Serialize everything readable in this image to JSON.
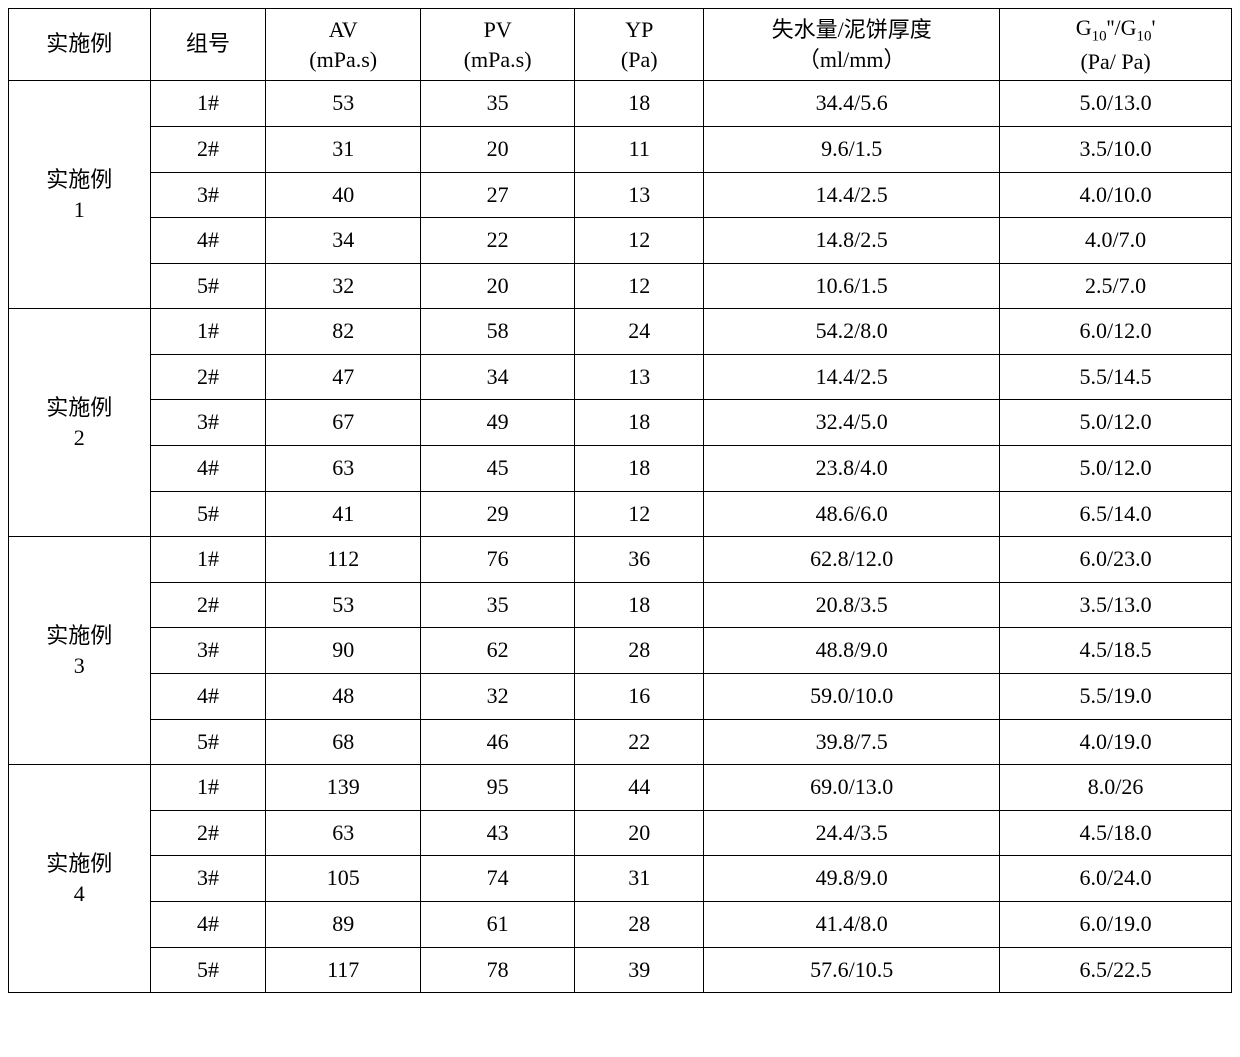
{
  "headers": {
    "example": "实施例",
    "group": "组号",
    "av_label": "AV",
    "av_unit": "(mPa.s)",
    "pv_label": "PV",
    "pv_unit": "(mPa.s)",
    "yp_label": "YP",
    "yp_unit": "(Pa)",
    "water_label": "失水量/泥饼厚度",
    "water_unit": "（ml/mm）",
    "g_label_pre": "G",
    "g_sub1": "10",
    "g_label_mid1": "''/G",
    "g_sub2": "10",
    "g_label_mid2": "'",
    "g_unit": "(Pa/ Pa)"
  },
  "examples": [
    {
      "label": "实施例\n1",
      "rows": [
        {
          "group": "1#",
          "av": "53",
          "pv": "35",
          "yp": "18",
          "water": "34.4/5.6",
          "g": "5.0/13.0"
        },
        {
          "group": "2#",
          "av": "31",
          "pv": "20",
          "yp": "11",
          "water": "9.6/1.5",
          "g": "3.5/10.0"
        },
        {
          "group": "3#",
          "av": "40",
          "pv": "27",
          "yp": "13",
          "water": "14.4/2.5",
          "g": "4.0/10.0"
        },
        {
          "group": "4#",
          "av": "34",
          "pv": "22",
          "yp": "12",
          "water": "14.8/2.5",
          "g": "4.0/7.0"
        },
        {
          "group": "5#",
          "av": "32",
          "pv": "20",
          "yp": "12",
          "water": "10.6/1.5",
          "g": "2.5/7.0"
        }
      ]
    },
    {
      "label": "实施例\n2",
      "rows": [
        {
          "group": "1#",
          "av": "82",
          "pv": "58",
          "yp": "24",
          "water": "54.2/8.0",
          "g": "6.0/12.0"
        },
        {
          "group": "2#",
          "av": "47",
          "pv": "34",
          "yp": "13",
          "water": "14.4/2.5",
          "g": "5.5/14.5"
        },
        {
          "group": "3#",
          "av": "67",
          "pv": "49",
          "yp": "18",
          "water": "32.4/5.0",
          "g": "5.0/12.0"
        },
        {
          "group": "4#",
          "av": "63",
          "pv": "45",
          "yp": "18",
          "water": "23.8/4.0",
          "g": "5.0/12.0"
        },
        {
          "group": "5#",
          "av": "41",
          "pv": "29",
          "yp": "12",
          "water": "48.6/6.0",
          "g": "6.5/14.0"
        }
      ]
    },
    {
      "label": "实施例\n3",
      "rows": [
        {
          "group": "1#",
          "av": "112",
          "pv": "76",
          "yp": "36",
          "water": "62.8/12.0",
          "g": "6.0/23.0"
        },
        {
          "group": "2#",
          "av": "53",
          "pv": "35",
          "yp": "18",
          "water": "20.8/3.5",
          "g": "3.5/13.0"
        },
        {
          "group": "3#",
          "av": "90",
          "pv": "62",
          "yp": "28",
          "water": "48.8/9.0",
          "g": "4.5/18.5"
        },
        {
          "group": "4#",
          "av": "48",
          "pv": "32",
          "yp": "16",
          "water": "59.0/10.0",
          "g": "5.5/19.0"
        },
        {
          "group": "5#",
          "av": "68",
          "pv": "46",
          "yp": "22",
          "water": "39.8/7.5",
          "g": "4.0/19.0"
        }
      ]
    },
    {
      "label": "实施例\n4",
      "rows": [
        {
          "group": "1#",
          "av": "139",
          "pv": "95",
          "yp": "44",
          "water": "69.0/13.0",
          "g": "8.0/26"
        },
        {
          "group": "2#",
          "av": "63",
          "pv": "43",
          "yp": "20",
          "water": "24.4/3.5",
          "g": "4.5/18.0"
        },
        {
          "group": "3#",
          "av": "105",
          "pv": "74",
          "yp": "31",
          "water": "49.8/9.0",
          "g": "6.0/24.0"
        },
        {
          "group": "4#",
          "av": "89",
          "pv": "61",
          "yp": "28",
          "water": "41.4/8.0",
          "g": "6.0/19.0"
        },
        {
          "group": "5#",
          "av": "117",
          "pv": "78",
          "yp": "39",
          "water": "57.6/10.5",
          "g": "6.5/22.5"
        }
      ]
    }
  ],
  "table": {
    "border_color": "#000000",
    "background_color": "#ffffff",
    "font_size": 22,
    "header_font_size": 22,
    "sub_font_size": 15
  }
}
